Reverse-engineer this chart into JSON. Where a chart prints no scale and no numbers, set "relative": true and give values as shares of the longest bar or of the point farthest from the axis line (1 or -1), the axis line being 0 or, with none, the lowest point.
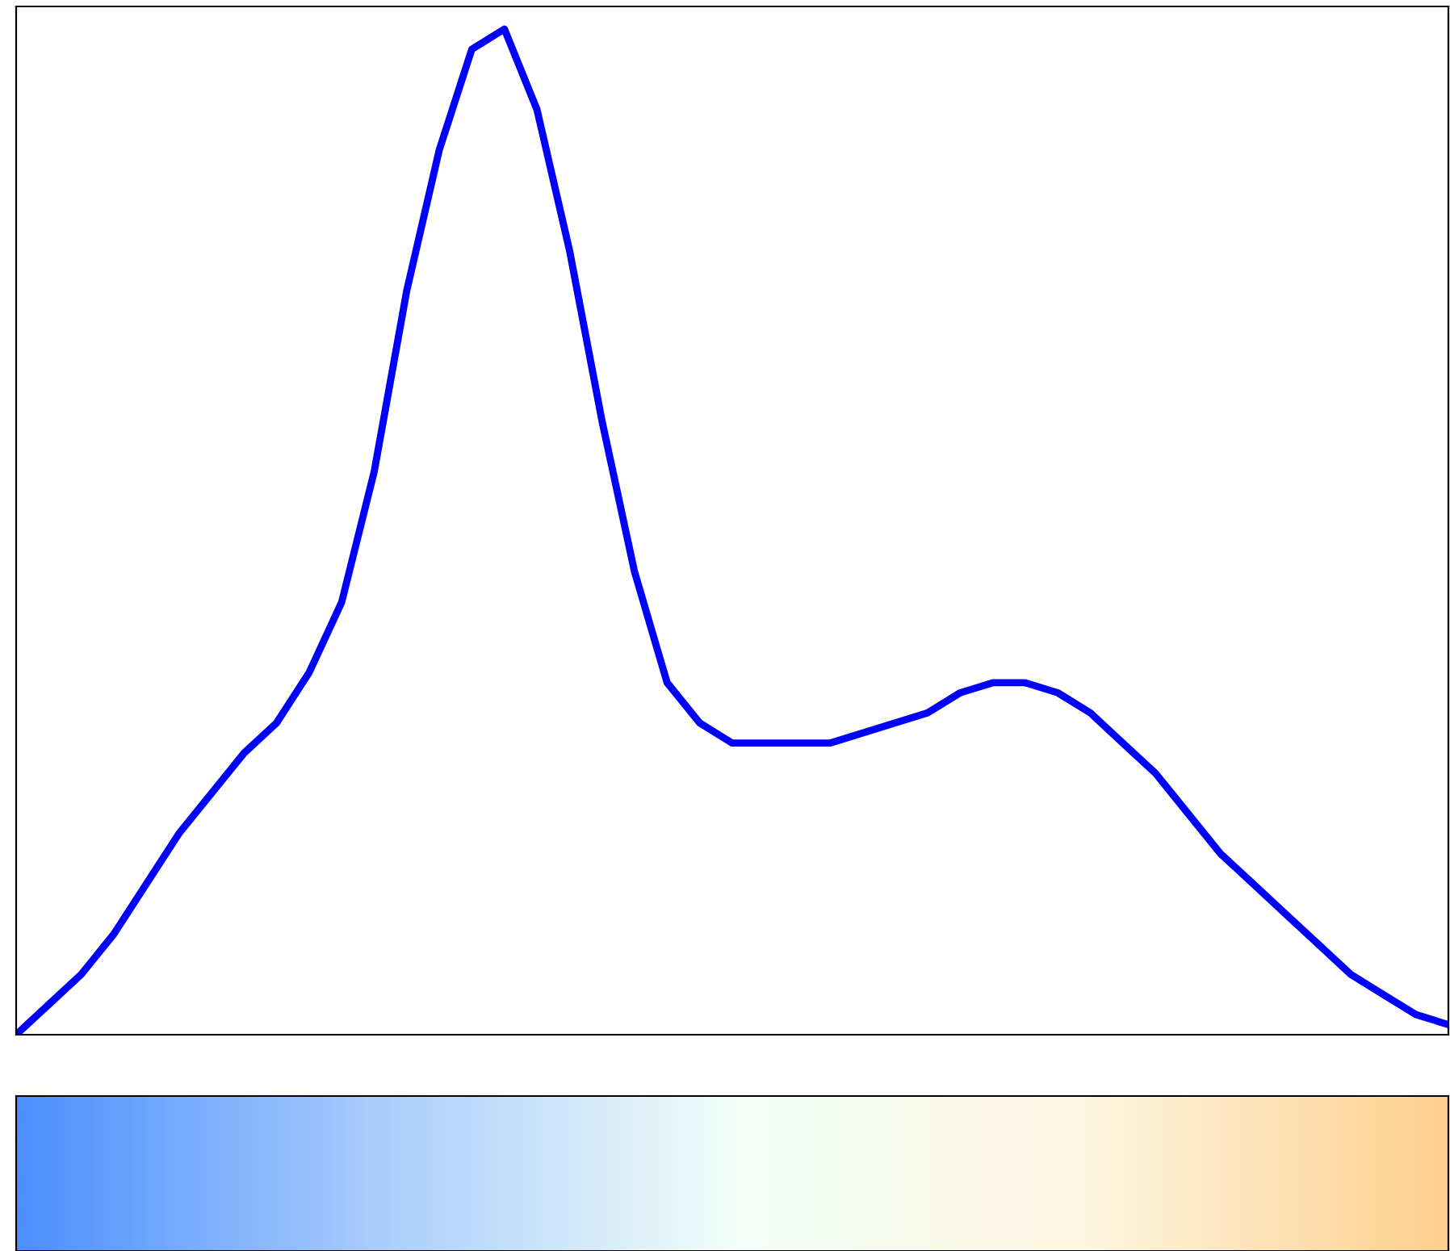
{
  "chart_data": {
    "type": "line",
    "relative": true,
    "grid": false,
    "legend": false,
    "marker": "none",
    "line_style": "solid",
    "categories": [
      null,
      null,
      null,
      null,
      null,
      null,
      null,
      null,
      null,
      null,
      null,
      null,
      null,
      null,
      null,
      null,
      null,
      null,
      null,
      null,
      null,
      null,
      null,
      null,
      null,
      null,
      null,
      null,
      null,
      null,
      null,
      null,
      null,
      null,
      null,
      null,
      null,
      null,
      null,
      null,
      null,
      null,
      null,
      null,
      null
    ],
    "series": [
      {
        "color": "#0000ff",
        "values": [
          0.0,
          0.03,
          0.06,
          0.1,
          0.15,
          0.2,
          0.24,
          0.28,
          0.31,
          0.36,
          0.43,
          0.56,
          0.74,
          0.88,
          0.98,
          1.0,
          0.92,
          0.78,
          0.61,
          0.46,
          0.35,
          0.31,
          0.29,
          0.29,
          0.29,
          0.29,
          0.3,
          0.31,
          0.32,
          0.34,
          0.35,
          0.35,
          0.34,
          0.32,
          0.29,
          0.26,
          0.22,
          0.18,
          0.15,
          0.12,
          0.09,
          0.06,
          0.04,
          0.02,
          0.01
        ]
      }
    ]
  }
}
